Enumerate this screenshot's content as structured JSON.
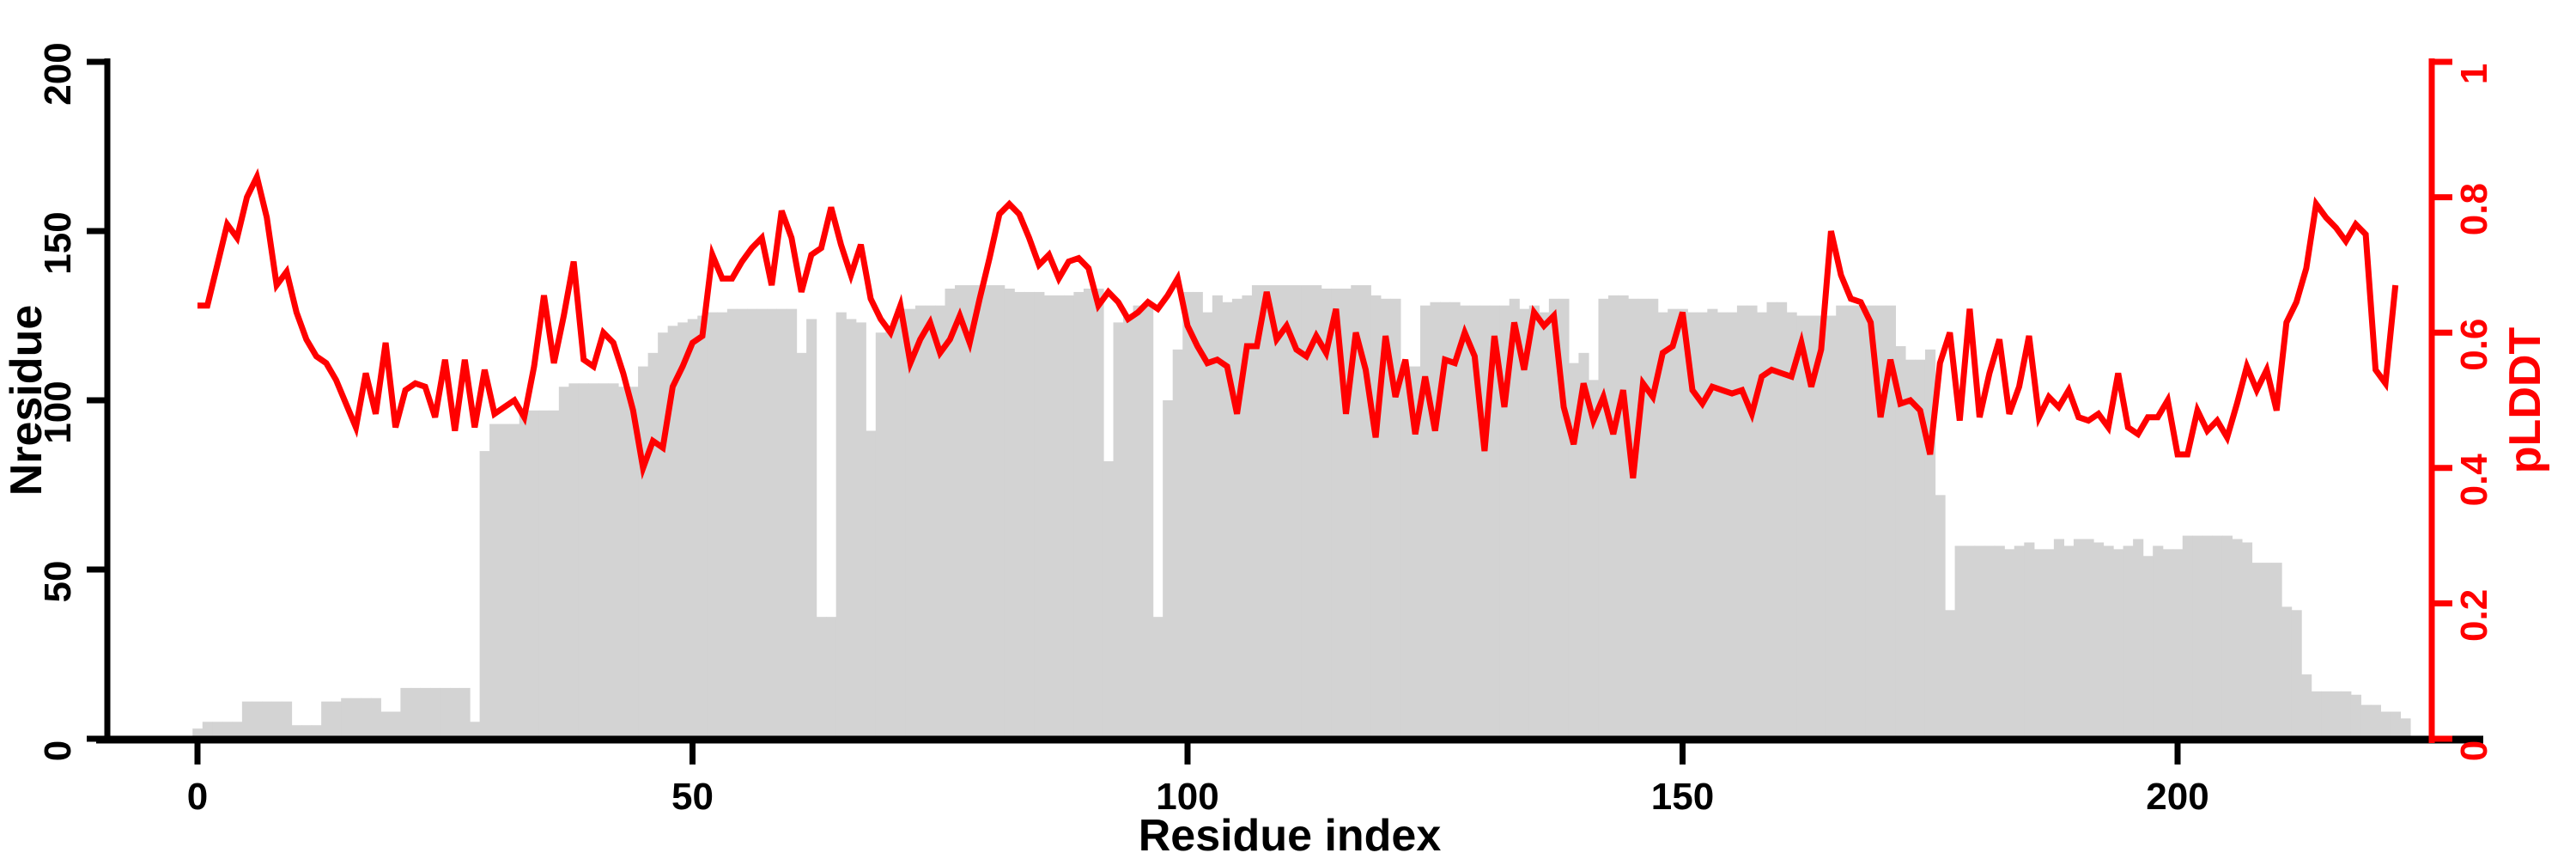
{
  "chart_data": {
    "type": "bar+line dual-axis",
    "title": "",
    "x_axis": {
      "title": "Residue index",
      "ticks": [
        0,
        50,
        100,
        150,
        200
      ],
      "tick_labels": [
        "0",
        "50",
        "100",
        "150",
        "200"
      ],
      "range_shown": [
        0,
        226
      ]
    },
    "left_axis": {
      "title": "Nresidue",
      "ticks": [
        0,
        50,
        100,
        150,
        200
      ],
      "tick_labels": [
        "0",
        "50",
        "100",
        "150",
        "200"
      ],
      "ylim": [
        0,
        200
      ],
      "color": "#000000"
    },
    "right_axis": {
      "title": "pLDDT",
      "ticks": [
        0,
        0.2,
        0.4,
        0.6,
        0.8,
        1
      ],
      "tick_labels": [
        "0",
        "0.2",
        "0.4",
        "0.6",
        "0.8",
        "1"
      ],
      "ylim": [
        0,
        1
      ],
      "color": "#ff0000"
    },
    "grid": false,
    "legend": false,
    "x0": 0,
    "dx": 1,
    "series": [
      {
        "name": "Nresidue",
        "type": "bar",
        "axis": "left",
        "color": "#d3d3d3",
        "values": [
          3,
          5,
          5,
          5,
          5,
          11,
          11,
          11,
          11,
          11,
          4,
          4,
          4,
          11,
          11,
          12,
          12,
          12,
          12,
          8,
          8,
          15,
          15,
          15,
          15,
          15,
          15,
          15,
          5,
          85,
          93,
          93,
          93,
          97,
          97,
          97,
          97,
          104,
          105,
          105,
          105,
          105,
          105,
          104,
          104,
          110,
          114,
          120,
          122,
          123,
          124,
          125,
          126,
          126,
          127,
          127,
          127,
          127,
          127,
          127,
          127,
          114,
          124,
          36,
          36,
          126,
          124,
          123,
          91,
          120,
          122,
          127,
          127,
          128,
          128,
          128,
          133,
          134,
          134,
          134,
          134,
          134,
          133,
          132,
          132,
          132,
          131,
          131,
          131,
          132,
          133,
          133,
          82,
          123,
          125,
          128,
          128,
          36,
          100,
          115,
          132,
          132,
          126,
          131,
          129,
          130,
          131,
          134,
          134,
          134,
          134,
          134,
          134,
          134,
          133,
          133,
          133,
          134,
          134,
          131,
          130,
          130,
          110,
          110,
          128,
          129,
          129,
          129,
          128,
          128,
          128,
          128,
          128,
          130,
          127,
          128,
          126,
          130,
          130,
          111,
          114,
          106,
          130,
          131,
          131,
          130,
          130,
          130,
          126,
          127,
          127,
          126,
          126,
          127,
          126,
          126,
          128,
          128,
          126,
          129,
          129,
          126,
          125,
          125,
          125,
          125,
          128,
          128,
          128,
          128,
          128,
          128,
          116,
          112,
          112,
          115,
          72,
          38,
          57,
          57,
          57,
          57,
          57,
          56,
          57,
          58,
          56,
          56,
          59,
          57,
          59,
          59,
          58,
          57,
          56,
          57,
          59,
          54,
          57,
          56,
          56,
          60,
          60,
          60,
          60,
          60,
          59,
          58,
          52,
          52,
          52,
          39,
          38,
          19,
          14,
          14,
          14,
          14,
          13,
          10,
          10,
          8,
          8,
          6
        ]
      },
      {
        "name": "pLDDT",
        "type": "line",
        "axis": "right",
        "color": "#ff0000",
        "values": [
          0.64,
          0.64,
          0.7,
          0.76,
          0.74,
          0.8,
          0.83,
          0.77,
          0.67,
          0.69,
          0.63,
          0.59,
          0.565,
          0.555,
          0.53,
          0.495,
          0.46,
          0.54,
          0.48,
          0.585,
          0.46,
          0.515,
          0.525,
          0.52,
          0.475,
          0.56,
          0.455,
          0.56,
          0.46,
          0.545,
          0.48,
          0.49,
          0.5,
          0.475,
          0.55,
          0.655,
          0.555,
          0.625,
          0.705,
          0.56,
          0.55,
          0.6,
          0.585,
          0.54,
          0.485,
          0.4,
          0.44,
          0.43,
          0.52,
          0.55,
          0.585,
          0.595,
          0.715,
          0.68,
          0.68,
          0.705,
          0.725,
          0.74,
          0.67,
          0.78,
          0.74,
          0.66,
          0.715,
          0.725,
          0.785,
          0.73,
          0.685,
          0.73,
          0.65,
          0.62,
          0.6,
          0.64,
          0.555,
          0.59,
          0.615,
          0.57,
          0.59,
          0.625,
          0.585,
          0.65,
          0.71,
          0.775,
          0.79,
          0.775,
          0.74,
          0.7,
          0.715,
          0.68,
          0.705,
          0.71,
          0.695,
          0.64,
          0.66,
          0.645,
          0.62,
          0.63,
          0.645,
          0.635,
          0.655,
          0.68,
          0.61,
          0.58,
          0.555,
          0.56,
          0.55,
          0.48,
          0.58,
          0.58,
          0.66,
          0.59,
          0.61,
          0.575,
          0.565,
          0.595,
          0.57,
          0.635,
          0.48,
          0.6,
          0.545,
          0.445,
          0.595,
          0.505,
          0.56,
          0.45,
          0.535,
          0.455,
          0.56,
          0.555,
          0.6,
          0.565,
          0.425,
          0.595,
          0.49,
          0.615,
          0.545,
          0.63,
          0.61,
          0.625,
          0.49,
          0.435,
          0.525,
          0.47,
          0.505,
          0.45,
          0.515,
          0.385,
          0.525,
          0.505,
          0.57,
          0.58,
          0.63,
          0.515,
          0.495,
          0.52,
          0.515,
          0.51,
          0.515,
          0.48,
          0.535,
          0.545,
          0.54,
          0.535,
          0.585,
          0.52,
          0.575,
          0.75,
          0.685,
          0.65,
          0.645,
          0.615,
          0.475,
          0.56,
          0.495,
          0.5,
          0.485,
          0.42,
          0.555,
          0.6,
          0.47,
          0.635,
          0.475,
          0.54,
          0.59,
          0.48,
          0.52,
          0.595,
          0.475,
          0.505,
          0.49,
          0.515,
          0.475,
          0.47,
          0.48,
          0.46,
          0.54,
          0.46,
          0.45,
          0.475,
          0.475,
          0.5,
          0.42,
          0.42,
          0.485,
          0.455,
          0.47,
          0.445,
          0.495,
          0.55,
          0.515,
          0.545,
          0.485,
          0.615,
          0.645,
          0.695,
          0.79,
          0.77,
          0.755,
          0.735,
          0.76,
          0.745,
          0.545,
          0.525,
          0.67
        ]
      }
    ]
  }
}
